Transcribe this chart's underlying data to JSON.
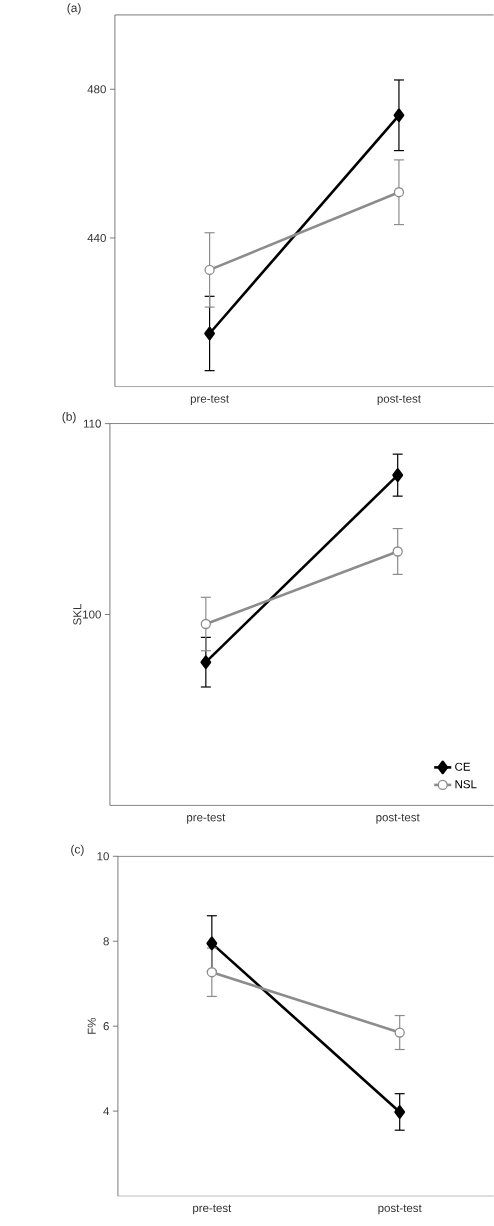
{
  "chart_data": [
    {
      "type": "line",
      "title": "(a)",
      "categories": [
        "pre-test",
        "post-test"
      ],
      "ylim": [
        400,
        500
      ],
      "yticks": [
        440,
        480
      ],
      "series": [
        {
          "color": "#000000",
          "marker": "diamond",
          "values": [
            414.3,
            473
          ],
          "errors": [
            10,
            9.5
          ]
        },
        {
          "color": "#8c8c8c",
          "marker": "circle",
          "values": [
            431.4,
            452.3
          ],
          "errors": [
            10,
            8.7
          ]
        }
      ]
    },
    {
      "type": "line",
      "title": "(b)",
      "ylabel": "SKL",
      "categories": [
        "pre-test",
        "post-test"
      ],
      "ylim": [
        90,
        110
      ],
      "yticks": [
        100,
        110
      ],
      "legend": "bottom right",
      "series": [
        {
          "name": "CE",
          "color": "#000000",
          "marker": "diamond",
          "values": [
            97.5,
            107.3
          ],
          "errors": [
            1.3,
            1.1
          ]
        },
        {
          "name": "NSL",
          "color": "#8c8c8c",
          "marker": "circle",
          "values": [
            99.5,
            103.3
          ],
          "errors": [
            1.4,
            1.2
          ]
        }
      ]
    },
    {
      "type": "line",
      "title": "(c)",
      "ylabel": "F%",
      "categories": [
        "pre-test",
        "post-test"
      ],
      "ylim": [
        2,
        10
      ],
      "yticks": [
        4,
        6,
        8,
        10
      ],
      "series": [
        {
          "color": "#000000",
          "marker": "diamond",
          "values": [
            7.95,
            3.98
          ],
          "errors": [
            0.65,
            0.43
          ]
        },
        {
          "color": "#8c8c8c",
          "marker": "circle",
          "values": [
            7.27,
            5.85
          ],
          "errors": [
            0.57,
            0.4
          ]
        }
      ]
    }
  ]
}
